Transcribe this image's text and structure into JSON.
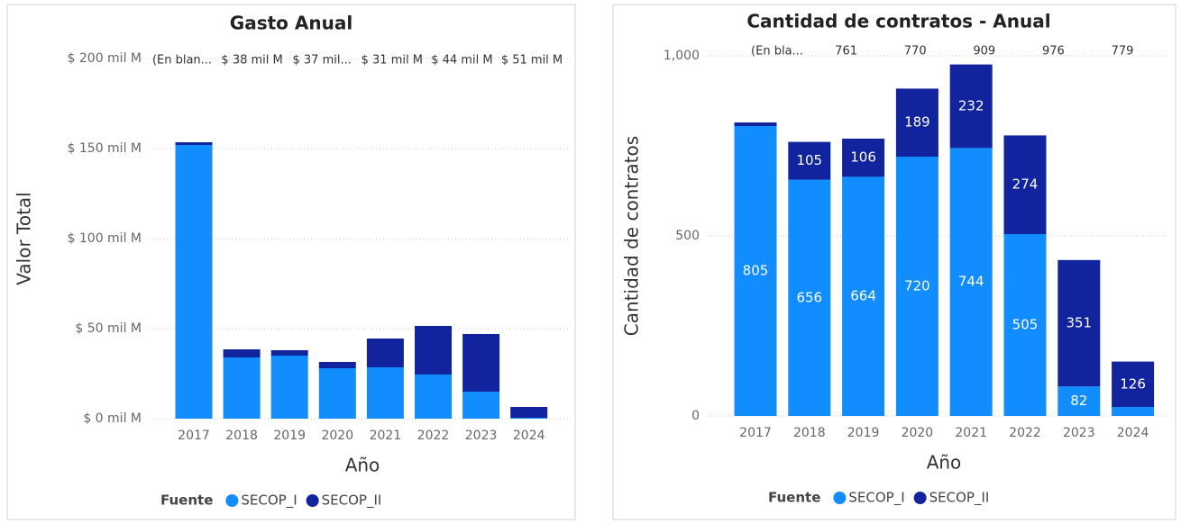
{
  "chart_data": [
    {
      "type": "stacked_bar",
      "title": "Gasto Anual",
      "x_label": "Año",
      "y_label": "Valor Total",
      "legend_title": "Fuente",
      "data_labels": false,
      "grid": true,
      "categories": [
        "2017",
        "2018",
        "2019",
        "2020",
        "2021",
        "2022",
        "2023",
        "2024"
      ],
      "series": [
        {
          "name": "SECOP_I",
          "color": "#118DFF",
          "values": [
            152,
            34,
            35,
            28,
            28.5,
            24.5,
            15,
            0.5
          ]
        },
        {
          "name": "SECOP_II",
          "color": "#12239E",
          "values": [
            1.5,
            4.5,
            3,
            3.5,
            16,
            27,
            32,
            6
          ]
        }
      ],
      "ylim": [
        0,
        200
      ],
      "yticks": [
        {
          "value": 0,
          "label": "$ 0 mil M"
        },
        {
          "value": 50,
          "label": "$ 50 mil M"
        },
        {
          "value": 100,
          "label": "$ 100 mil M"
        },
        {
          "value": 150,
          "label": "$ 150 mil M"
        },
        {
          "value": 200,
          "label": "$ 200 mil M"
        }
      ],
      "annotations": [
        "(En blan...",
        "$ 38 mil M",
        "$ 37 mil...",
        "$ 31 mil M",
        "$ 44 mil M",
        "$ 51 mil M"
      ]
    },
    {
      "type": "stacked_bar",
      "title": "Cantidad de contratos - Anual",
      "x_label": "Año",
      "y_label": "Cantidad de contratos",
      "legend_title": "Fuente",
      "data_labels": true,
      "grid": true,
      "categories": [
        "2017",
        "2018",
        "2019",
        "2020",
        "2021",
        "2022",
        "2023",
        "2024"
      ],
      "series": [
        {
          "name": "SECOP_I",
          "color": "#118DFF",
          "values": [
            805,
            656,
            664,
            720,
            744,
            505,
            82,
            25
          ]
        },
        {
          "name": "SECOP_II",
          "color": "#12239E",
          "values": [
            10,
            105,
            106,
            189,
            232,
            274,
            351,
            126
          ]
        }
      ],
      "ylim": [
        0,
        1000
      ],
      "yticks": [
        0,
        500,
        {
          "value": 1000,
          "label": "1,000"
        }
      ],
      "annotations": [
        "(En bla...",
        "761",
        "770",
        "909",
        "976",
        "779"
      ]
    }
  ]
}
